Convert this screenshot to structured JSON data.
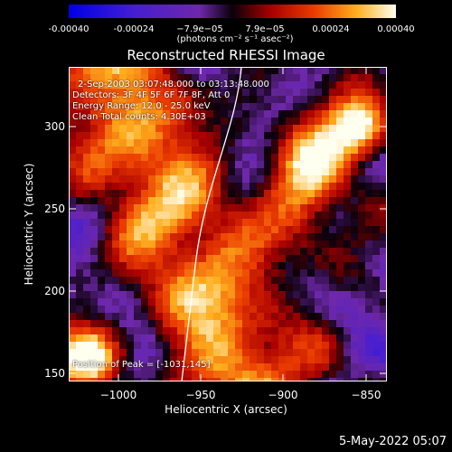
{
  "colorbar": {
    "ticks": [
      "-0.00040",
      "-0.00024",
      "−7.9e−05",
      "7.9e−05",
      "0.00024",
      "0.00040"
    ],
    "units": "(photons cm⁻² s⁻¹ asec⁻²)",
    "min": -0.0004,
    "max": 0.0004
  },
  "plot": {
    "title": "Reconstructed RHESSI Image",
    "info_lines": [
      "2-Sep-2003 03:07:48.000 to 03:13:48.000",
      "Detectors: 3F 4F 5F 6F 7F 8F, Att 0",
      "Energy Range: 12.0 - 25.0 keV",
      "Clean     Total counts: 4.30E+03"
    ],
    "peak_label": "Position of Peak = [-1031,145]",
    "xlabel": "Heliocentric X (arcsec)",
    "ylabel": "Heliocentric Y (arcsec)",
    "xticks": [
      "−1000",
      "−950",
      "−900",
      "−850"
    ],
    "yticks": [
      "300",
      "250",
      "200",
      "150"
    ],
    "xlim": [
      -1034,
      -838
    ],
    "ylim": [
      142,
      335
    ]
  },
  "timestamp": "5-May-2022 05:07"
}
